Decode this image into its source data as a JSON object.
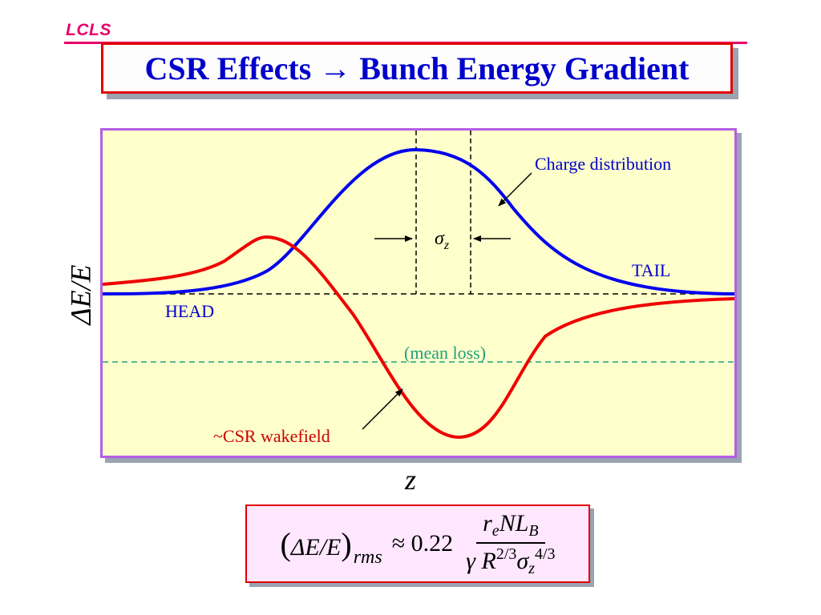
{
  "header": {
    "logo": "LCLS",
    "title_left": "CSR Effects",
    "title_arrow": "→",
    "title_right": "Bunch Energy Gradient"
  },
  "plot": {
    "ylabel": "ΔE/E",
    "xlabel": "z",
    "labels": {
      "charge": "Charge distribution",
      "sigma": "σ",
      "sigma_sub": "z",
      "tail": "TAIL",
      "head": "HEAD",
      "mean_loss": "(mean loss)",
      "wakefield": "~CSR wakefield"
    },
    "colors": {
      "charge_curve": "#0000ee",
      "wake_curve": "#ee0000",
      "mean_loss": "#20a080",
      "label_blue": "#0000cc",
      "label_red": "#cc0000"
    }
  },
  "formula": {
    "lhs_open": "(",
    "lhs_body": "ΔE/E",
    "lhs_close": ")",
    "lhs_sub": "rms",
    "relation": "≈ 0.22",
    "num_main": "r",
    "num_sub": "e",
    "num_rest": "NL",
    "num_rest_sub": "B",
    "den_gamma": "γ",
    "den_R": "R",
    "den_R_sup": "2/3",
    "den_sigma": "σ",
    "den_sigma_sub": "z",
    "den_sigma_sup": "4/3"
  }
}
